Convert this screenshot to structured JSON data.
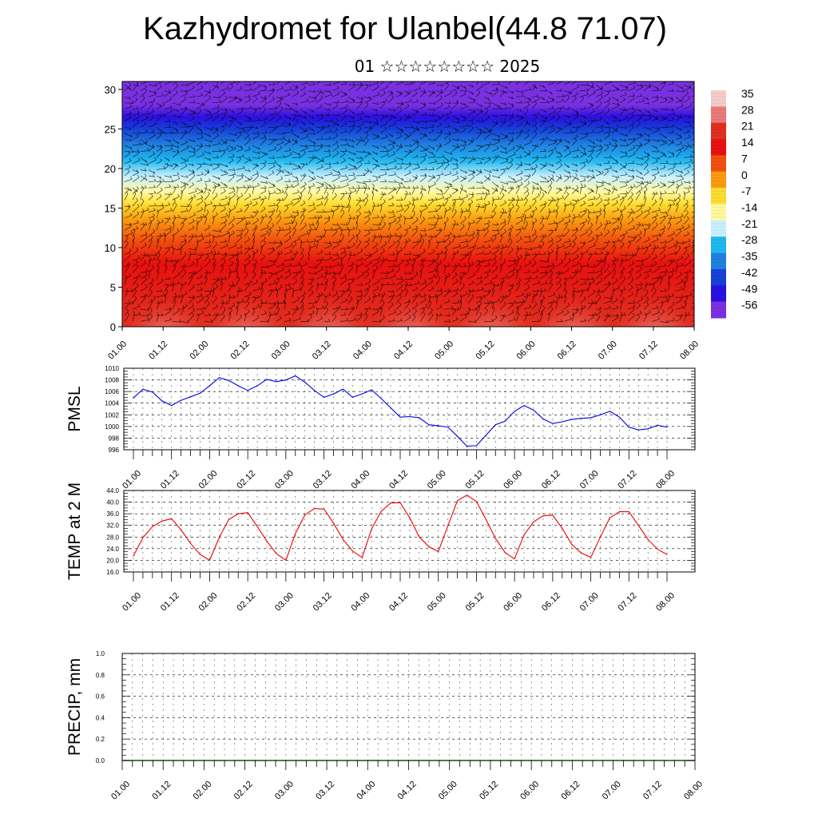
{
  "title": "Kazhydromet for Ulanbel(44.8 71.07)",
  "subtitle": "01 ☆☆☆☆☆☆☆☆ 2025",
  "x_tick_labels": [
    "01.00",
    "01.12",
    "02.00",
    "02.12",
    "03.00",
    "03.12",
    "04.00",
    "04.12",
    "05.00",
    "05.12",
    "06.00",
    "06.12",
    "07.00",
    "07.12",
    "08.00"
  ],
  "chart_data": [
    {
      "type": "heatmap",
      "ylim": [
        0,
        31
      ],
      "yticks": [
        0,
        5,
        10,
        15,
        20,
        25,
        30
      ],
      "colorbar_labels": [
        "35",
        "28",
        "21",
        "14",
        "7",
        "0",
        "-7",
        "-14",
        "-21",
        "-28",
        "-35",
        "-42",
        "-49",
        "-56"
      ],
      "colorbar_colors": [
        "#f4cccc",
        "#ea7a7a",
        "#e03020",
        "#e81010",
        "#f25010",
        "#fa9a10",
        "#ffdc30",
        "#fff9a0",
        "#c8f0ff",
        "#20b8f0",
        "#2080e0",
        "#1640d8",
        "#2a10e0",
        "#7a30e0"
      ],
      "wind_barbs": true,
      "xlabel": "",
      "ylabel": ""
    },
    {
      "type": "line",
      "ylabel": "PMSL",
      "ylim": [
        996,
        1010
      ],
      "yticks": [
        996,
        998,
        1000,
        1002,
        1004,
        1006,
        1008,
        1010
      ],
      "color": "#0000ee",
      "x": [
        0,
        1,
        2,
        3,
        4,
        5,
        6,
        7,
        8,
        9,
        10,
        11,
        12,
        13,
        14,
        15,
        16,
        17,
        18,
        19,
        20,
        21,
        22,
        23,
        24,
        25,
        26,
        27,
        28,
        29,
        30,
        31,
        32,
        33,
        34,
        35,
        36,
        37,
        38,
        39,
        40,
        41,
        42,
        43,
        44,
        45,
        46,
        47,
        48,
        49,
        50,
        51,
        52,
        53,
        54,
        55,
        56
      ],
      "values": [
        1004.9,
        1006.4,
        1005.9,
        1004.4,
        1003.6,
        1004.5,
        1005.1,
        1005.7,
        1007.0,
        1008.4,
        1007.9,
        1007.0,
        1006.2,
        1007.0,
        1008.1,
        1007.7,
        1008.0,
        1008.7,
        1007.6,
        1006.2,
        1005.0,
        1005.6,
        1006.4,
        1005.0,
        1005.6,
        1006.3,
        1004.8,
        1003.2,
        1001.6,
        1001.7,
        1001.5,
        1000.3,
        1000.1,
        999.9,
        998.3,
        996.6,
        996.7,
        998.5,
        1000.3,
        1000.9,
        1002.6,
        1003.6,
        1002.8,
        1001.3,
        1000.5,
        1000.8,
        1001.2,
        1001.4,
        1001.5,
        1002.0,
        1002.6,
        1001.6,
        999.9,
        999.4,
        999.6,
        1000.2,
        999.9
      ]
    },
    {
      "type": "line",
      "ylabel": "TEMP at 2 M",
      "ylim": [
        16,
        44
      ],
      "yticks": [
        16.0,
        20.0,
        24.0,
        28.0,
        32.0,
        36.0,
        40.0,
        44.0
      ],
      "ytick_labels": [
        "16.0",
        "20.0",
        "24.0",
        "28.0",
        "32.0",
        "36.0",
        "40.0",
        "44.0"
      ],
      "color": "#ee0000",
      "x": [
        0,
        1,
        2,
        3,
        4,
        5,
        6,
        7,
        8,
        9,
        10,
        11,
        12,
        13,
        14,
        15,
        16,
        17,
        18,
        19,
        20,
        21,
        22,
        23,
        24,
        25,
        26,
        27,
        28,
        29,
        30,
        31,
        32,
        33,
        34,
        35,
        36,
        37,
        38,
        39,
        40,
        41,
        42,
        43,
        44,
        45,
        46,
        47,
        48,
        49,
        50,
        51,
        52,
        53,
        54,
        55,
        56
      ],
      "values": [
        21.5,
        27.8,
        31.6,
        33.5,
        34.3,
        30.5,
        25.8,
        22.0,
        20.0,
        27.8,
        34.0,
        36.0,
        36.4,
        31.6,
        26.6,
        22.3,
        20.0,
        29.2,
        35.6,
        37.8,
        37.6,
        32.8,
        27.2,
        23.2,
        21.0,
        30.8,
        36.8,
        39.7,
        39.8,
        34.6,
        28.0,
        24.7,
        23.0,
        31.8,
        40.5,
        42.4,
        40.2,
        34.0,
        27.5,
        22.7,
        20.5,
        28.8,
        33.2,
        35.3,
        35.5,
        31.0,
        25.5,
        22.5,
        21.0,
        28.0,
        34.6,
        36.7,
        36.7,
        32.0,
        27.2,
        23.8,
        22.0
      ]
    },
    {
      "type": "bar",
      "ylabel": "PRECIP, mm",
      "ylim": [
        0.0,
        1.0
      ],
      "yticks": [
        0.0,
        0.2,
        0.4,
        0.6,
        0.8,
        1.0
      ],
      "ytick_labels": [
        "0.0",
        "0.2",
        "0.4",
        "0.6",
        "0.8",
        "1.0"
      ],
      "values": [
        0,
        0,
        0,
        0,
        0,
        0,
        0,
        0,
        0,
        0,
        0,
        0,
        0,
        0,
        0,
        0,
        0,
        0,
        0,
        0,
        0,
        0,
        0,
        0,
        0,
        0,
        0,
        0,
        0,
        0,
        0,
        0,
        0,
        0,
        0,
        0,
        0,
        0,
        0,
        0,
        0,
        0,
        0,
        0,
        0,
        0,
        0,
        0,
        0,
        0,
        0,
        0,
        0,
        0,
        0,
        0,
        0
      ]
    }
  ]
}
